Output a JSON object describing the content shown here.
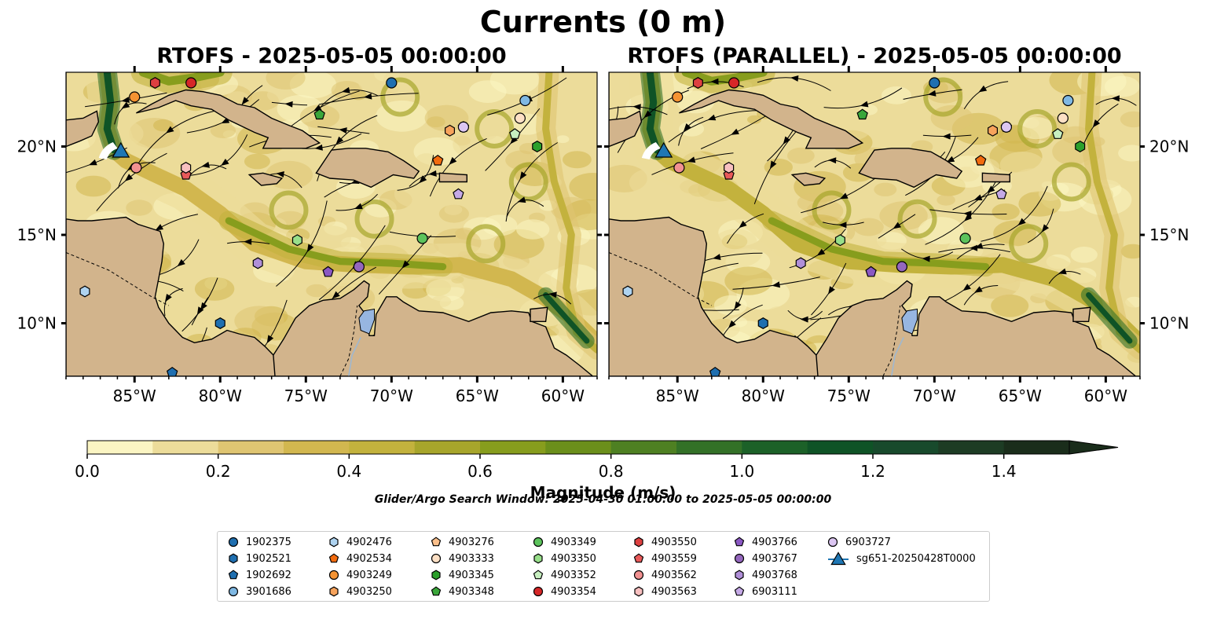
{
  "title": "Currents (0 m)",
  "panels": [
    {
      "title": "RTOFS - 2025-05-05 00:00:00"
    },
    {
      "title": "RTOFS (PARALLEL) - 2025-05-05 00:00:00"
    }
  ],
  "axes": {
    "lon_ticks": [
      "85°W",
      "80°W",
      "75°W",
      "70°W",
      "65°W",
      "60°W"
    ],
    "lat_ticks": [
      "20°N",
      "15°N",
      "10°N"
    ],
    "lon_range": [
      -89,
      -58
    ],
    "lat_range": [
      7,
      24.2
    ]
  },
  "colorbar": {
    "label": "Magnitude (m/s)",
    "ticks": [
      "0.0",
      "0.2",
      "0.4",
      "0.6",
      "0.8",
      "1.0",
      "1.2",
      "1.4"
    ],
    "range": [
      0,
      1.5
    ],
    "extend": "max",
    "colors": [
      "#fbf5c3",
      "#ecdc9a",
      "#dfc572",
      "#d2b74f",
      "#c3b23d",
      "#a7a52b",
      "#879d1d",
      "#6b8f1b",
      "#4e8022",
      "#337127",
      "#1c6128",
      "#0f5326",
      "#184a2c",
      "#1d3c24",
      "#1a2d1b"
    ]
  },
  "search_window": "Glider/Argo Search Window: 2025-04-30 01:00:00 to 2025-05-05 00:00:00",
  "legend": [
    {
      "id": "1902375",
      "color": "#1f6fb0",
      "marker": "circle"
    },
    {
      "id": "1902521",
      "color": "#1f6fb0",
      "marker": "hexagon"
    },
    {
      "id": "1902692",
      "color": "#1f6fb0",
      "marker": "pentagon"
    },
    {
      "id": "3901686",
      "color": "#7fb8e3",
      "marker": "circle"
    },
    {
      "id": "4902476",
      "color": "#aed3f0",
      "marker": "hexagon"
    },
    {
      "id": "4902534",
      "color": "#f26b0f",
      "marker": "pentagon"
    },
    {
      "id": "4903249",
      "color": "#f59332",
      "marker": "circle"
    },
    {
      "id": "4903250",
      "color": "#f7a35c",
      "marker": "hexagon"
    },
    {
      "id": "4903276",
      "color": "#fbbf8a",
      "marker": "pentagon"
    },
    {
      "id": "4903333",
      "color": "#fde0c5",
      "marker": "circle"
    },
    {
      "id": "4903345",
      "color": "#2ca02c",
      "marker": "hexagon"
    },
    {
      "id": "4903348",
      "color": "#3aa63a",
      "marker": "pentagon"
    },
    {
      "id": "4903349",
      "color": "#5cc35c",
      "marker": "circle"
    },
    {
      "id": "4903350",
      "color": "#98df8a",
      "marker": "hexagon"
    },
    {
      "id": "4903352",
      "color": "#c7efc0",
      "marker": "pentagon"
    },
    {
      "id": "4903354",
      "color": "#d62728",
      "marker": "circle"
    },
    {
      "id": "4903550",
      "color": "#de4040",
      "marker": "hexagon"
    },
    {
      "id": "4903559",
      "color": "#e85a5a",
      "marker": "pentagon"
    },
    {
      "id": "4903562",
      "color": "#f19191",
      "marker": "circle"
    },
    {
      "id": "4903563",
      "color": "#f8c0c0",
      "marker": "hexagon"
    },
    {
      "id": "4903766",
      "color": "#8a58c3",
      "marker": "pentagon"
    },
    {
      "id": "4903767",
      "color": "#9467bd",
      "marker": "circle"
    },
    {
      "id": "4903768",
      "color": "#b08fd8",
      "marker": "hexagon"
    },
    {
      "id": "6903111",
      "color": "#c5a9e6",
      "marker": "pentagon"
    },
    {
      "id": "6903727",
      "color": "#dcc6f2",
      "marker": "circle"
    },
    {
      "id": "sg651-20250428T0000",
      "color": "#1f77b4",
      "marker": "triangle"
    }
  ],
  "floats": [
    {
      "id": "1902375",
      "lon": -70.0,
      "lat": 23.6
    },
    {
      "id": "1902521",
      "lon": -80.0,
      "lat": 10.0
    },
    {
      "id": "1902692",
      "lon": -82.8,
      "lat": 7.2
    },
    {
      "id": "3901686",
      "lon": -62.2,
      "lat": 22.6
    },
    {
      "id": "4902476",
      "lon": -87.9,
      "lat": 11.8
    },
    {
      "id": "4902534",
      "lon": -67.3,
      "lat": 19.2
    },
    {
      "id": "4903249",
      "lon": -85.0,
      "lat": 22.8
    },
    {
      "id": "4903250",
      "lon": -66.6,
      "lat": 20.9
    },
    {
      "id": "4903276",
      "lon": -65.8,
      "lat": 21.1
    },
    {
      "id": "4903333",
      "lon": -62.5,
      "lat": 21.6
    },
    {
      "id": "4903345",
      "lon": -61.5,
      "lat": 20.0
    },
    {
      "id": "4903348",
      "lon": -74.2,
      "lat": 21.8
    },
    {
      "id": "4903349",
      "lon": -68.2,
      "lat": 14.8
    },
    {
      "id": "4903350",
      "lon": -75.5,
      "lat": 14.7
    },
    {
      "id": "4903352",
      "lon": -62.8,
      "lat": 20.7
    },
    {
      "id": "4903354",
      "lon": -81.7,
      "lat": 23.6
    },
    {
      "id": "4903550",
      "lon": -83.8,
      "lat": 23.6
    },
    {
      "id": "4903559",
      "lon": -82.0,
      "lat": 18.4
    },
    {
      "id": "4903562",
      "lon": -84.9,
      "lat": 18.8
    },
    {
      "id": "4903563",
      "lon": -82.0,
      "lat": 18.8
    },
    {
      "id": "4903766",
      "lon": -73.7,
      "lat": 12.9
    },
    {
      "id": "4903767",
      "lon": -71.9,
      "lat": 13.2
    },
    {
      "id": "4903768",
      "lon": -77.8,
      "lat": 13.4
    },
    {
      "id": "6903111",
      "lon": -66.1,
      "lat": 17.3
    },
    {
      "id": "6903727",
      "lon": -65.8,
      "lat": 21.1
    }
  ],
  "glider": {
    "id": "sg651-20250428T0000",
    "lon": -85.8,
    "lat": 19.8
  },
  "colors": {
    "land": "#d2b48c",
    "lake": "#97b6e1",
    "river": "#9fb8d0"
  }
}
